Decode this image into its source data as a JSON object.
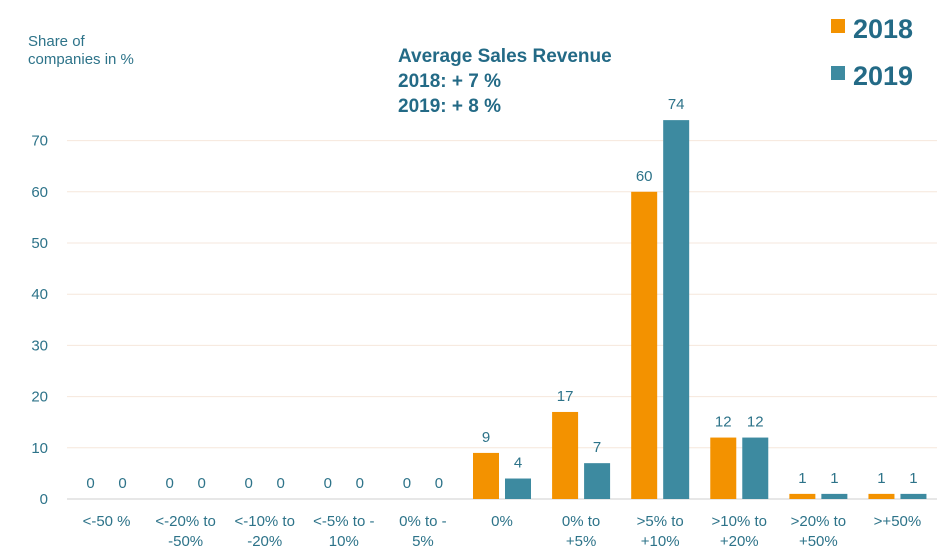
{
  "chart_data": {
    "type": "bar",
    "ylabel_lines": [
      "Share of",
      "companies in %"
    ],
    "annotation": {
      "title": "Average Sales Revenue",
      "lines": [
        "2018: + 7 %",
        "2019: + 8 %"
      ]
    },
    "legend_position": "top-right",
    "categories": [
      [
        "<-50 %"
      ],
      [
        "<-20% to",
        "-50%"
      ],
      [
        "<-10% to",
        "-20%"
      ],
      [
        "<-5% to -",
        "10%"
      ],
      [
        "0% to -",
        "5%"
      ],
      [
        "0%"
      ],
      [
        "0% to",
        "+5%"
      ],
      [
        ">5% to",
        "+10%"
      ],
      [
        ">10% to",
        "+20%"
      ],
      [
        ">20% to",
        "+50%"
      ],
      [
        ">+50%"
      ]
    ],
    "series": [
      {
        "name": "2018",
        "color": "#f39200",
        "values": [
          0,
          0,
          0,
          0,
          0,
          9,
          17,
          60,
          12,
          1,
          1
        ]
      },
      {
        "name": "2019",
        "color": "#3d8aa0",
        "values": [
          0,
          0,
          0,
          0,
          0,
          4,
          7,
          74,
          12,
          1,
          1
        ]
      }
    ],
    "ylim": [
      0,
      75
    ],
    "yticks": [
      0,
      10,
      20,
      30,
      40,
      50,
      60,
      70
    ],
    "grid": true
  }
}
